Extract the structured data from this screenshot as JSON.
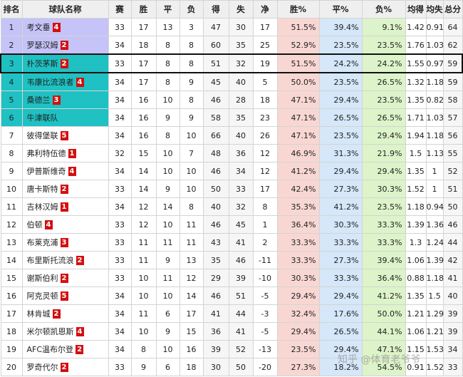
{
  "headers": [
    "排名",
    "球队名称",
    "赛",
    "胜",
    "平",
    "负",
    "得",
    "失",
    "净",
    "胜%",
    "平%",
    "负%",
    "均得",
    "均失",
    "总分"
  ],
  "rows": [
    {
      "rank": "1",
      "team": "考文垂",
      "badge": "4",
      "p": "33",
      "w": "17",
      "d": "13",
      "l": "3",
      "gf": "47",
      "ga": "30",
      "gd": "17",
      "wp": "51.5%",
      "dp": "39.4%",
      "lp": "9.1%",
      "af": "1.42",
      "aa": "0.91",
      "pts": "64",
      "zone": "purple"
    },
    {
      "rank": "2",
      "team": "罗瑟汉姆",
      "badge": "2",
      "p": "34",
      "w": "18",
      "d": "8",
      "l": "8",
      "gf": "60",
      "ga": "35",
      "gd": "25",
      "wp": "52.9%",
      "dp": "23.5%",
      "lp": "23.5%",
      "af": "1.76",
      "aa": "1.03",
      "pts": "62",
      "zone": "purple"
    },
    {
      "rank": "3",
      "team": "朴茨茅斯",
      "badge": "2",
      "p": "33",
      "w": "17",
      "d": "8",
      "l": "8",
      "gf": "51",
      "ga": "32",
      "gd": "19",
      "wp": "51.5%",
      "dp": "24.2%",
      "lp": "24.2%",
      "af": "1.55",
      "aa": "0.97",
      "pts": "59",
      "zone": "cyan",
      "highlight": true
    },
    {
      "rank": "4",
      "team": "韦康比流浪者",
      "badge": "4",
      "p": "34",
      "w": "17",
      "d": "8",
      "l": "9",
      "gf": "45",
      "ga": "40",
      "gd": "5",
      "wp": "50.0%",
      "dp": "23.5%",
      "lp": "26.5%",
      "af": "1.32",
      "aa": "1.18",
      "pts": "59",
      "zone": "cyan"
    },
    {
      "rank": "5",
      "team": "桑德兰",
      "badge": "3",
      "p": "34",
      "w": "16",
      "d": "10",
      "l": "8",
      "gf": "46",
      "ga": "28",
      "gd": "18",
      "wp": "47.1%",
      "dp": "29.4%",
      "lp": "23.5%",
      "af": "1.35",
      "aa": "0.82",
      "pts": "58",
      "zone": "cyan"
    },
    {
      "rank": "6",
      "team": "牛津联队",
      "badge": "",
      "p": "34",
      "w": "16",
      "d": "9",
      "l": "9",
      "gf": "58",
      "ga": "35",
      "gd": "23",
      "wp": "47.1%",
      "dp": "26.5%",
      "lp": "26.5%",
      "af": "1.71",
      "aa": "1.03",
      "pts": "57",
      "zone": "cyan"
    },
    {
      "rank": "7",
      "team": "彼得堡联",
      "badge": "5",
      "p": "34",
      "w": "16",
      "d": "8",
      "l": "10",
      "gf": "66",
      "ga": "40",
      "gd": "26",
      "wp": "47.1%",
      "dp": "23.5%",
      "lp": "29.4%",
      "af": "1.94",
      "aa": "1.18",
      "pts": "56",
      "zone": ""
    },
    {
      "rank": "8",
      "team": "弗利特伍德",
      "badge": "1",
      "p": "32",
      "w": "15",
      "d": "10",
      "l": "7",
      "gf": "48",
      "ga": "36",
      "gd": "12",
      "wp": "46.9%",
      "dp": "31.3%",
      "lp": "21.9%",
      "af": "1.5",
      "aa": "1.13",
      "pts": "55",
      "zone": ""
    },
    {
      "rank": "9",
      "team": "伊普斯维奇",
      "badge": "4",
      "p": "34",
      "w": "14",
      "d": "10",
      "l": "10",
      "gf": "46",
      "ga": "34",
      "gd": "12",
      "wp": "41.2%",
      "dp": "29.4%",
      "lp": "29.4%",
      "af": "1.35",
      "aa": "1",
      "pts": "52",
      "zone": ""
    },
    {
      "rank": "10",
      "team": "唐卡斯特",
      "badge": "2",
      "p": "33",
      "w": "14",
      "d": "9",
      "l": "10",
      "gf": "50",
      "ga": "33",
      "gd": "17",
      "wp": "42.4%",
      "dp": "27.3%",
      "lp": "30.3%",
      "af": "1.52",
      "aa": "1",
      "pts": "51",
      "zone": ""
    },
    {
      "rank": "11",
      "team": "吉林汉姆",
      "badge": "1",
      "p": "34",
      "w": "12",
      "d": "14",
      "l": "8",
      "gf": "40",
      "ga": "32",
      "gd": "8",
      "wp": "35.3%",
      "dp": "41.2%",
      "lp": "23.5%",
      "af": "1.18",
      "aa": "0.94",
      "pts": "50",
      "zone": ""
    },
    {
      "rank": "12",
      "team": "伯顿",
      "badge": "4",
      "p": "33",
      "w": "12",
      "d": "10",
      "l": "11",
      "gf": "46",
      "ga": "45",
      "gd": "1",
      "wp": "36.4%",
      "dp": "30.3%",
      "lp": "33.3%",
      "af": "1.39",
      "aa": "1.36",
      "pts": "46",
      "zone": ""
    },
    {
      "rank": "13",
      "team": "布莱克浦",
      "badge": "3",
      "p": "33",
      "w": "11",
      "d": "11",
      "l": "11",
      "gf": "43",
      "ga": "41",
      "gd": "2",
      "wp": "33.3%",
      "dp": "33.3%",
      "lp": "33.3%",
      "af": "1.3",
      "aa": "1.24",
      "pts": "44",
      "zone": ""
    },
    {
      "rank": "14",
      "team": "布里斯托流浪",
      "badge": "2",
      "p": "33",
      "w": "11",
      "d": "9",
      "l": "13",
      "gf": "35",
      "ga": "46",
      "gd": "-11",
      "wp": "33.3%",
      "dp": "27.3%",
      "lp": "39.4%",
      "af": "1.06",
      "aa": "1.39",
      "pts": "42",
      "zone": ""
    },
    {
      "rank": "15",
      "team": "谢斯伯利",
      "badge": "2",
      "p": "33",
      "w": "10",
      "d": "11",
      "l": "12",
      "gf": "29",
      "ga": "39",
      "gd": "-10",
      "wp": "30.3%",
      "dp": "33.3%",
      "lp": "36.4%",
      "af": "0.88",
      "aa": "1.18",
      "pts": "41",
      "zone": ""
    },
    {
      "rank": "16",
      "team": "阿克灵顿",
      "badge": "5",
      "p": "34",
      "w": "10",
      "d": "10",
      "l": "14",
      "gf": "46",
      "ga": "51",
      "gd": "-5",
      "wp": "29.4%",
      "dp": "29.4%",
      "lp": "41.2%",
      "af": "1.35",
      "aa": "1.5",
      "pts": "40",
      "zone": ""
    },
    {
      "rank": "17",
      "team": "林肯城",
      "badge": "2",
      "p": "34",
      "w": "11",
      "d": "6",
      "l": "17",
      "gf": "41",
      "ga": "44",
      "gd": "-3",
      "wp": "32.4%",
      "dp": "17.6%",
      "lp": "50.0%",
      "af": "1.21",
      "aa": "1.29",
      "pts": "39",
      "zone": ""
    },
    {
      "rank": "18",
      "team": "米尔顿凯恩斯",
      "badge": "4",
      "p": "34",
      "w": "10",
      "d": "9",
      "l": "15",
      "gf": "36",
      "ga": "41",
      "gd": "-5",
      "wp": "29.4%",
      "dp": "26.5%",
      "lp": "44.1%",
      "af": "1.06",
      "aa": "1.21",
      "pts": "39",
      "zone": ""
    },
    {
      "rank": "19",
      "team": "AFC温布尔登",
      "badge": "2",
      "p": "34",
      "w": "8",
      "d": "10",
      "l": "16",
      "gf": "39",
      "ga": "52",
      "gd": "-13",
      "wp": "23.5%",
      "dp": "29.4%",
      "lp": "47.1%",
      "af": "1.15",
      "aa": "1.53",
      "pts": "34",
      "zone": ""
    },
    {
      "rank": "20",
      "team": "罗奇代尔",
      "badge": "2",
      "p": "33",
      "w": "9",
      "d": "6",
      "l": "18",
      "gf": "30",
      "ga": "50",
      "gd": "-20",
      "wp": "27.3%",
      "dp": "18.2%",
      "lp": "54.5%",
      "af": "0.91",
      "aa": "1.52",
      "pts": "33",
      "zone": ""
    }
  ],
  "watermark": "知乎 @体育老爷爷"
}
